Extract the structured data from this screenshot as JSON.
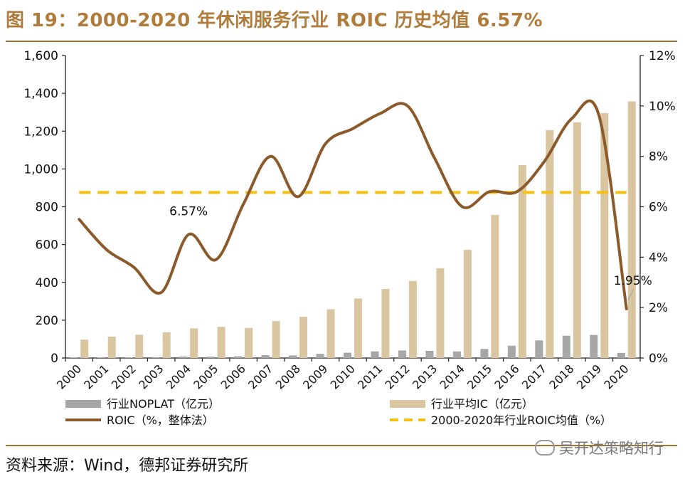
{
  "header": {
    "title": "图 19：2000-2020 年休闲服务行业 ROIC 历史均值 6.57%"
  },
  "footer": {
    "source": "资料来源：Wind，德邦证券研究所",
    "watermark": "吴开达策略知行"
  },
  "colors": {
    "noplat": "#a6a6a6",
    "ic": "#d9c5a0",
    "roic": "#8a5a2b",
    "avg": "#f5bf10",
    "accent": "#a6712f"
  },
  "chart_data": {
    "type": "bar",
    "categories": [
      "2000",
      "2001",
      "2002",
      "2003",
      "2004",
      "2005",
      "2006",
      "2007",
      "2008",
      "2009",
      "2010",
      "2011",
      "2012",
      "2013",
      "2014",
      "2015",
      "2016",
      "2017",
      "2018",
      "2019",
      "2020"
    ],
    "series": [
      {
        "name": "行业NOPLAT（亿元）",
        "type": "bar",
        "axis": "left",
        "values": [
          3,
          3,
          4,
          4,
          8,
          7,
          9,
          15,
          14,
          22,
          28,
          35,
          40,
          38,
          35,
          48,
          65,
          93,
          118,
          122,
          27
        ]
      },
      {
        "name": "行业平均IC（亿元）",
        "type": "bar",
        "axis": "left",
        "values": [
          97,
          113,
          123,
          136,
          157,
          165,
          159,
          195,
          218,
          258,
          315,
          365,
          407,
          475,
          572,
          757,
          1020,
          1205,
          1247,
          1295,
          1357
        ]
      },
      {
        "name": "ROIC（%，整体法）",
        "type": "line",
        "axis": "right",
        "values": [
          5.5,
          4.3,
          3.6,
          2.6,
          4.9,
          3.9,
          6.1,
          8.0,
          6.4,
          8.5,
          9.1,
          9.7,
          10.0,
          7.9,
          6.0,
          6.6,
          6.6,
          7.8,
          9.5,
          9.6,
          1.95
        ]
      },
      {
        "name": "2000-2020年行业ROIC均值（%）",
        "type": "line",
        "axis": "right",
        "style": "dashed",
        "value": 6.57
      }
    ],
    "y_left": {
      "ticks": [
        "0",
        "200",
        "400",
        "600",
        "800",
        "1,000",
        "1,200",
        "1,400",
        "1,600"
      ],
      "lim": [
        0,
        1600
      ]
    },
    "y_right": {
      "ticks": [
        "0%",
        "2%",
        "4%",
        "6%",
        "8%",
        "10%",
        "12%"
      ],
      "lim": [
        0,
        12
      ]
    },
    "annotations": [
      {
        "text": "6.57%",
        "series": "avg"
      },
      {
        "text": "1.95%",
        "series": "roic",
        "index": 20
      }
    ]
  }
}
